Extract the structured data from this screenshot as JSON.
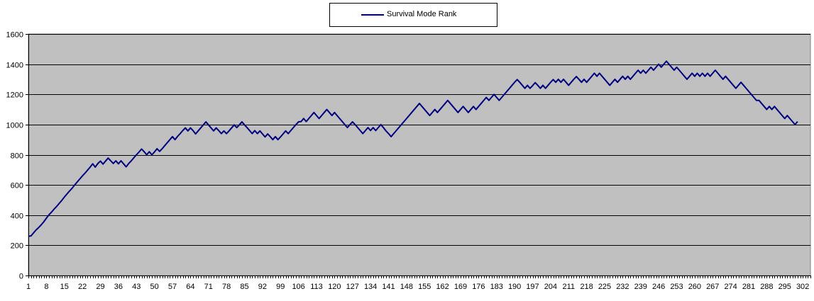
{
  "chart_data": {
    "type": "line",
    "title": "",
    "xlabel": "",
    "ylabel": "",
    "ylim": [
      0,
      1600
    ],
    "yticks": [
      0,
      200,
      400,
      600,
      800,
      1000,
      1200,
      1400,
      1600
    ],
    "xlim": [
      1,
      305
    ],
    "xticks": [
      1,
      8,
      15,
      22,
      29,
      36,
      43,
      50,
      57,
      64,
      71,
      78,
      85,
      92,
      99,
      106,
      113,
      120,
      127,
      134,
      141,
      148,
      155,
      162,
      169,
      176,
      183,
      190,
      197,
      204,
      211,
      218,
      225,
      232,
      239,
      246,
      253,
      260,
      267,
      274,
      281,
      288,
      295,
      302
    ],
    "grid": "horizontal",
    "legend_position": "top-center",
    "plot_background": "#c0c0c0",
    "series": [
      {
        "name": "Survival Mode Rank",
        "color": "#000080",
        "points": [
          [
            1,
            260
          ],
          [
            2,
            262
          ],
          [
            3,
            282
          ],
          [
            4,
            302
          ],
          [
            5,
            318
          ],
          [
            6,
            336
          ],
          [
            7,
            356
          ],
          [
            8,
            380
          ],
          [
            9,
            402
          ],
          [
            10,
            420
          ],
          [
            11,
            440
          ],
          [
            12,
            458
          ],
          [
            13,
            478
          ],
          [
            14,
            498
          ],
          [
            15,
            520
          ],
          [
            16,
            540
          ],
          [
            17,
            560
          ],
          [
            18,
            578
          ],
          [
            19,
            600
          ],
          [
            20,
            620
          ],
          [
            21,
            640
          ],
          [
            22,
            660
          ],
          [
            23,
            678
          ],
          [
            24,
            698
          ],
          [
            25,
            718
          ],
          [
            26,
            740
          ],
          [
            27,
            718
          ],
          [
            28,
            742
          ],
          [
            29,
            758
          ],
          [
            30,
            738
          ],
          [
            31,
            758
          ],
          [
            32,
            778
          ],
          [
            33,
            760
          ],
          [
            34,
            742
          ],
          [
            35,
            760
          ],
          [
            36,
            740
          ],
          [
            37,
            760
          ],
          [
            38,
            740
          ],
          [
            39,
            720
          ],
          [
            40,
            742
          ],
          [
            41,
            760
          ],
          [
            42,
            780
          ],
          [
            43,
            800
          ],
          [
            44,
            818
          ],
          [
            45,
            838
          ],
          [
            46,
            820
          ],
          [
            47,
            800
          ],
          [
            48,
            820
          ],
          [
            49,
            800
          ],
          [
            50,
            818
          ],
          [
            51,
            840
          ],
          [
            52,
            822
          ],
          [
            53,
            840
          ],
          [
            54,
            860
          ],
          [
            55,
            880
          ],
          [
            56,
            900
          ],
          [
            57,
            920
          ],
          [
            58,
            900
          ],
          [
            59,
            922
          ],
          [
            60,
            940
          ],
          [
            61,
            960
          ],
          [
            62,
            978
          ],
          [
            63,
            958
          ],
          [
            64,
            978
          ],
          [
            65,
            960
          ],
          [
            66,
            938
          ],
          [
            67,
            958
          ],
          [
            68,
            978
          ],
          [
            69,
            998
          ],
          [
            70,
            1018
          ],
          [
            71,
            998
          ],
          [
            72,
            978
          ],
          [
            73,
            958
          ],
          [
            74,
            978
          ],
          [
            75,
            960
          ],
          [
            76,
            940
          ],
          [
            77,
            958
          ],
          [
            78,
            940
          ],
          [
            79,
            958
          ],
          [
            80,
            978
          ],
          [
            81,
            998
          ],
          [
            82,
            980
          ],
          [
            83,
            998
          ],
          [
            84,
            1018
          ],
          [
            85,
            998
          ],
          [
            86,
            980
          ],
          [
            87,
            960
          ],
          [
            88,
            940
          ],
          [
            89,
            960
          ],
          [
            90,
            940
          ],
          [
            91,
            958
          ],
          [
            92,
            938
          ],
          [
            93,
            918
          ],
          [
            94,
            938
          ],
          [
            95,
            920
          ],
          [
            96,
            900
          ],
          [
            97,
            920
          ],
          [
            98,
            900
          ],
          [
            99,
            918
          ],
          [
            100,
            938
          ],
          [
            101,
            958
          ],
          [
            102,
            940
          ],
          [
            103,
            960
          ],
          [
            104,
            980
          ],
          [
            105,
            1000
          ],
          [
            106,
            1018
          ],
          [
            107,
            1020
          ],
          [
            108,
            1040
          ],
          [
            109,
            1020
          ],
          [
            110,
            1040
          ],
          [
            111,
            1060
          ],
          [
            112,
            1080
          ],
          [
            113,
            1060
          ],
          [
            114,
            1040
          ],
          [
            115,
            1060
          ],
          [
            116,
            1080
          ],
          [
            117,
            1100
          ],
          [
            118,
            1080
          ],
          [
            119,
            1060
          ],
          [
            120,
            1080
          ],
          [
            121,
            1060
          ],
          [
            122,
            1040
          ],
          [
            123,
            1020
          ],
          [
            124,
            1000
          ],
          [
            125,
            980
          ],
          [
            126,
            1000
          ],
          [
            127,
            1018
          ],
          [
            128,
            1000
          ],
          [
            129,
            980
          ],
          [
            130,
            960
          ],
          [
            131,
            940
          ],
          [
            132,
            960
          ],
          [
            133,
            980
          ],
          [
            134,
            960
          ],
          [
            135,
            980
          ],
          [
            136,
            960
          ],
          [
            137,
            980
          ],
          [
            138,
            1000
          ],
          [
            139,
            980
          ],
          [
            140,
            958
          ],
          [
            141,
            940
          ],
          [
            142,
            920
          ],
          [
            143,
            940
          ],
          [
            144,
            960
          ],
          [
            145,
            980
          ],
          [
            146,
            1000
          ],
          [
            147,
            1020
          ],
          [
            148,
            1040
          ],
          [
            149,
            1060
          ],
          [
            150,
            1080
          ],
          [
            151,
            1100
          ],
          [
            152,
            1120
          ],
          [
            153,
            1140
          ],
          [
            154,
            1120
          ],
          [
            155,
            1100
          ],
          [
            156,
            1080
          ],
          [
            157,
            1060
          ],
          [
            158,
            1080
          ],
          [
            159,
            1100
          ],
          [
            160,
            1080
          ],
          [
            161,
            1100
          ],
          [
            162,
            1120
          ],
          [
            163,
            1140
          ],
          [
            164,
            1160
          ],
          [
            165,
            1140
          ],
          [
            166,
            1120
          ],
          [
            167,
            1100
          ],
          [
            168,
            1080
          ],
          [
            169,
            1100
          ],
          [
            170,
            1120
          ],
          [
            171,
            1100
          ],
          [
            172,
            1080
          ],
          [
            173,
            1100
          ],
          [
            174,
            1120
          ],
          [
            175,
            1100
          ],
          [
            176,
            1120
          ],
          [
            177,
            1140
          ],
          [
            178,
            1160
          ],
          [
            179,
            1180
          ],
          [
            180,
            1160
          ],
          [
            181,
            1180
          ],
          [
            182,
            1200
          ],
          [
            183,
            1180
          ],
          [
            184,
            1160
          ],
          [
            185,
            1180
          ],
          [
            186,
            1200
          ],
          [
            187,
            1220
          ],
          [
            188,
            1240
          ],
          [
            189,
            1260
          ],
          [
            190,
            1280
          ],
          [
            191,
            1298
          ],
          [
            192,
            1280
          ],
          [
            193,
            1260
          ],
          [
            194,
            1240
          ],
          [
            195,
            1260
          ],
          [
            196,
            1240
          ],
          [
            197,
            1258
          ],
          [
            198,
            1278
          ],
          [
            199,
            1260
          ],
          [
            200,
            1240
          ],
          [
            201,
            1260
          ],
          [
            202,
            1240
          ],
          [
            203,
            1260
          ],
          [
            204,
            1280
          ],
          [
            205,
            1298
          ],
          [
            206,
            1280
          ],
          [
            207,
            1300
          ],
          [
            208,
            1280
          ],
          [
            209,
            1300
          ],
          [
            210,
            1280
          ],
          [
            211,
            1260
          ],
          [
            212,
            1280
          ],
          [
            213,
            1300
          ],
          [
            214,
            1318
          ],
          [
            215,
            1300
          ],
          [
            216,
            1280
          ],
          [
            217,
            1300
          ],
          [
            218,
            1280
          ],
          [
            219,
            1300
          ],
          [
            220,
            1320
          ],
          [
            221,
            1340
          ],
          [
            222,
            1320
          ],
          [
            223,
            1340
          ],
          [
            224,
            1320
          ],
          [
            225,
            1300
          ],
          [
            226,
            1280
          ],
          [
            227,
            1260
          ],
          [
            228,
            1280
          ],
          [
            229,
            1300
          ],
          [
            230,
            1280
          ],
          [
            231,
            1300
          ],
          [
            232,
            1320
          ],
          [
            233,
            1300
          ],
          [
            234,
            1320
          ],
          [
            235,
            1300
          ],
          [
            236,
            1320
          ],
          [
            237,
            1340
          ],
          [
            238,
            1360
          ],
          [
            239,
            1340
          ],
          [
            240,
            1360
          ],
          [
            241,
            1340
          ],
          [
            242,
            1360
          ],
          [
            243,
            1380
          ],
          [
            244,
            1360
          ],
          [
            245,
            1380
          ],
          [
            246,
            1400
          ],
          [
            247,
            1380
          ],
          [
            248,
            1400
          ],
          [
            249,
            1420
          ],
          [
            250,
            1400
          ],
          [
            251,
            1380
          ],
          [
            252,
            1360
          ],
          [
            253,
            1380
          ],
          [
            254,
            1360
          ],
          [
            255,
            1340
          ],
          [
            256,
            1320
          ],
          [
            257,
            1300
          ],
          [
            258,
            1320
          ],
          [
            259,
            1340
          ],
          [
            260,
            1320
          ],
          [
            261,
            1340
          ],
          [
            262,
            1320
          ],
          [
            263,
            1340
          ],
          [
            264,
            1320
          ],
          [
            265,
            1340
          ],
          [
            266,
            1320
          ],
          [
            267,
            1340
          ],
          [
            268,
            1360
          ],
          [
            269,
            1340
          ],
          [
            270,
            1320
          ],
          [
            271,
            1300
          ],
          [
            272,
            1320
          ],
          [
            273,
            1300
          ],
          [
            274,
            1280
          ],
          [
            275,
            1260
          ],
          [
            276,
            1240
          ],
          [
            277,
            1260
          ],
          [
            278,
            1280
          ],
          [
            279,
            1260
          ],
          [
            280,
            1240
          ],
          [
            281,
            1220
          ],
          [
            282,
            1200
          ],
          [
            283,
            1180
          ],
          [
            284,
            1160
          ],
          [
            285,
            1160
          ],
          [
            286,
            1140
          ],
          [
            287,
            1120
          ],
          [
            288,
            1100
          ],
          [
            289,
            1120
          ],
          [
            290,
            1100
          ],
          [
            291,
            1120
          ],
          [
            292,
            1100
          ],
          [
            293,
            1080
          ],
          [
            294,
            1060
          ],
          [
            295,
            1040
          ],
          [
            296,
            1060
          ],
          [
            297,
            1040
          ],
          [
            298,
            1020
          ],
          [
            299,
            1000
          ],
          [
            300,
            1020
          ]
        ]
      }
    ]
  }
}
